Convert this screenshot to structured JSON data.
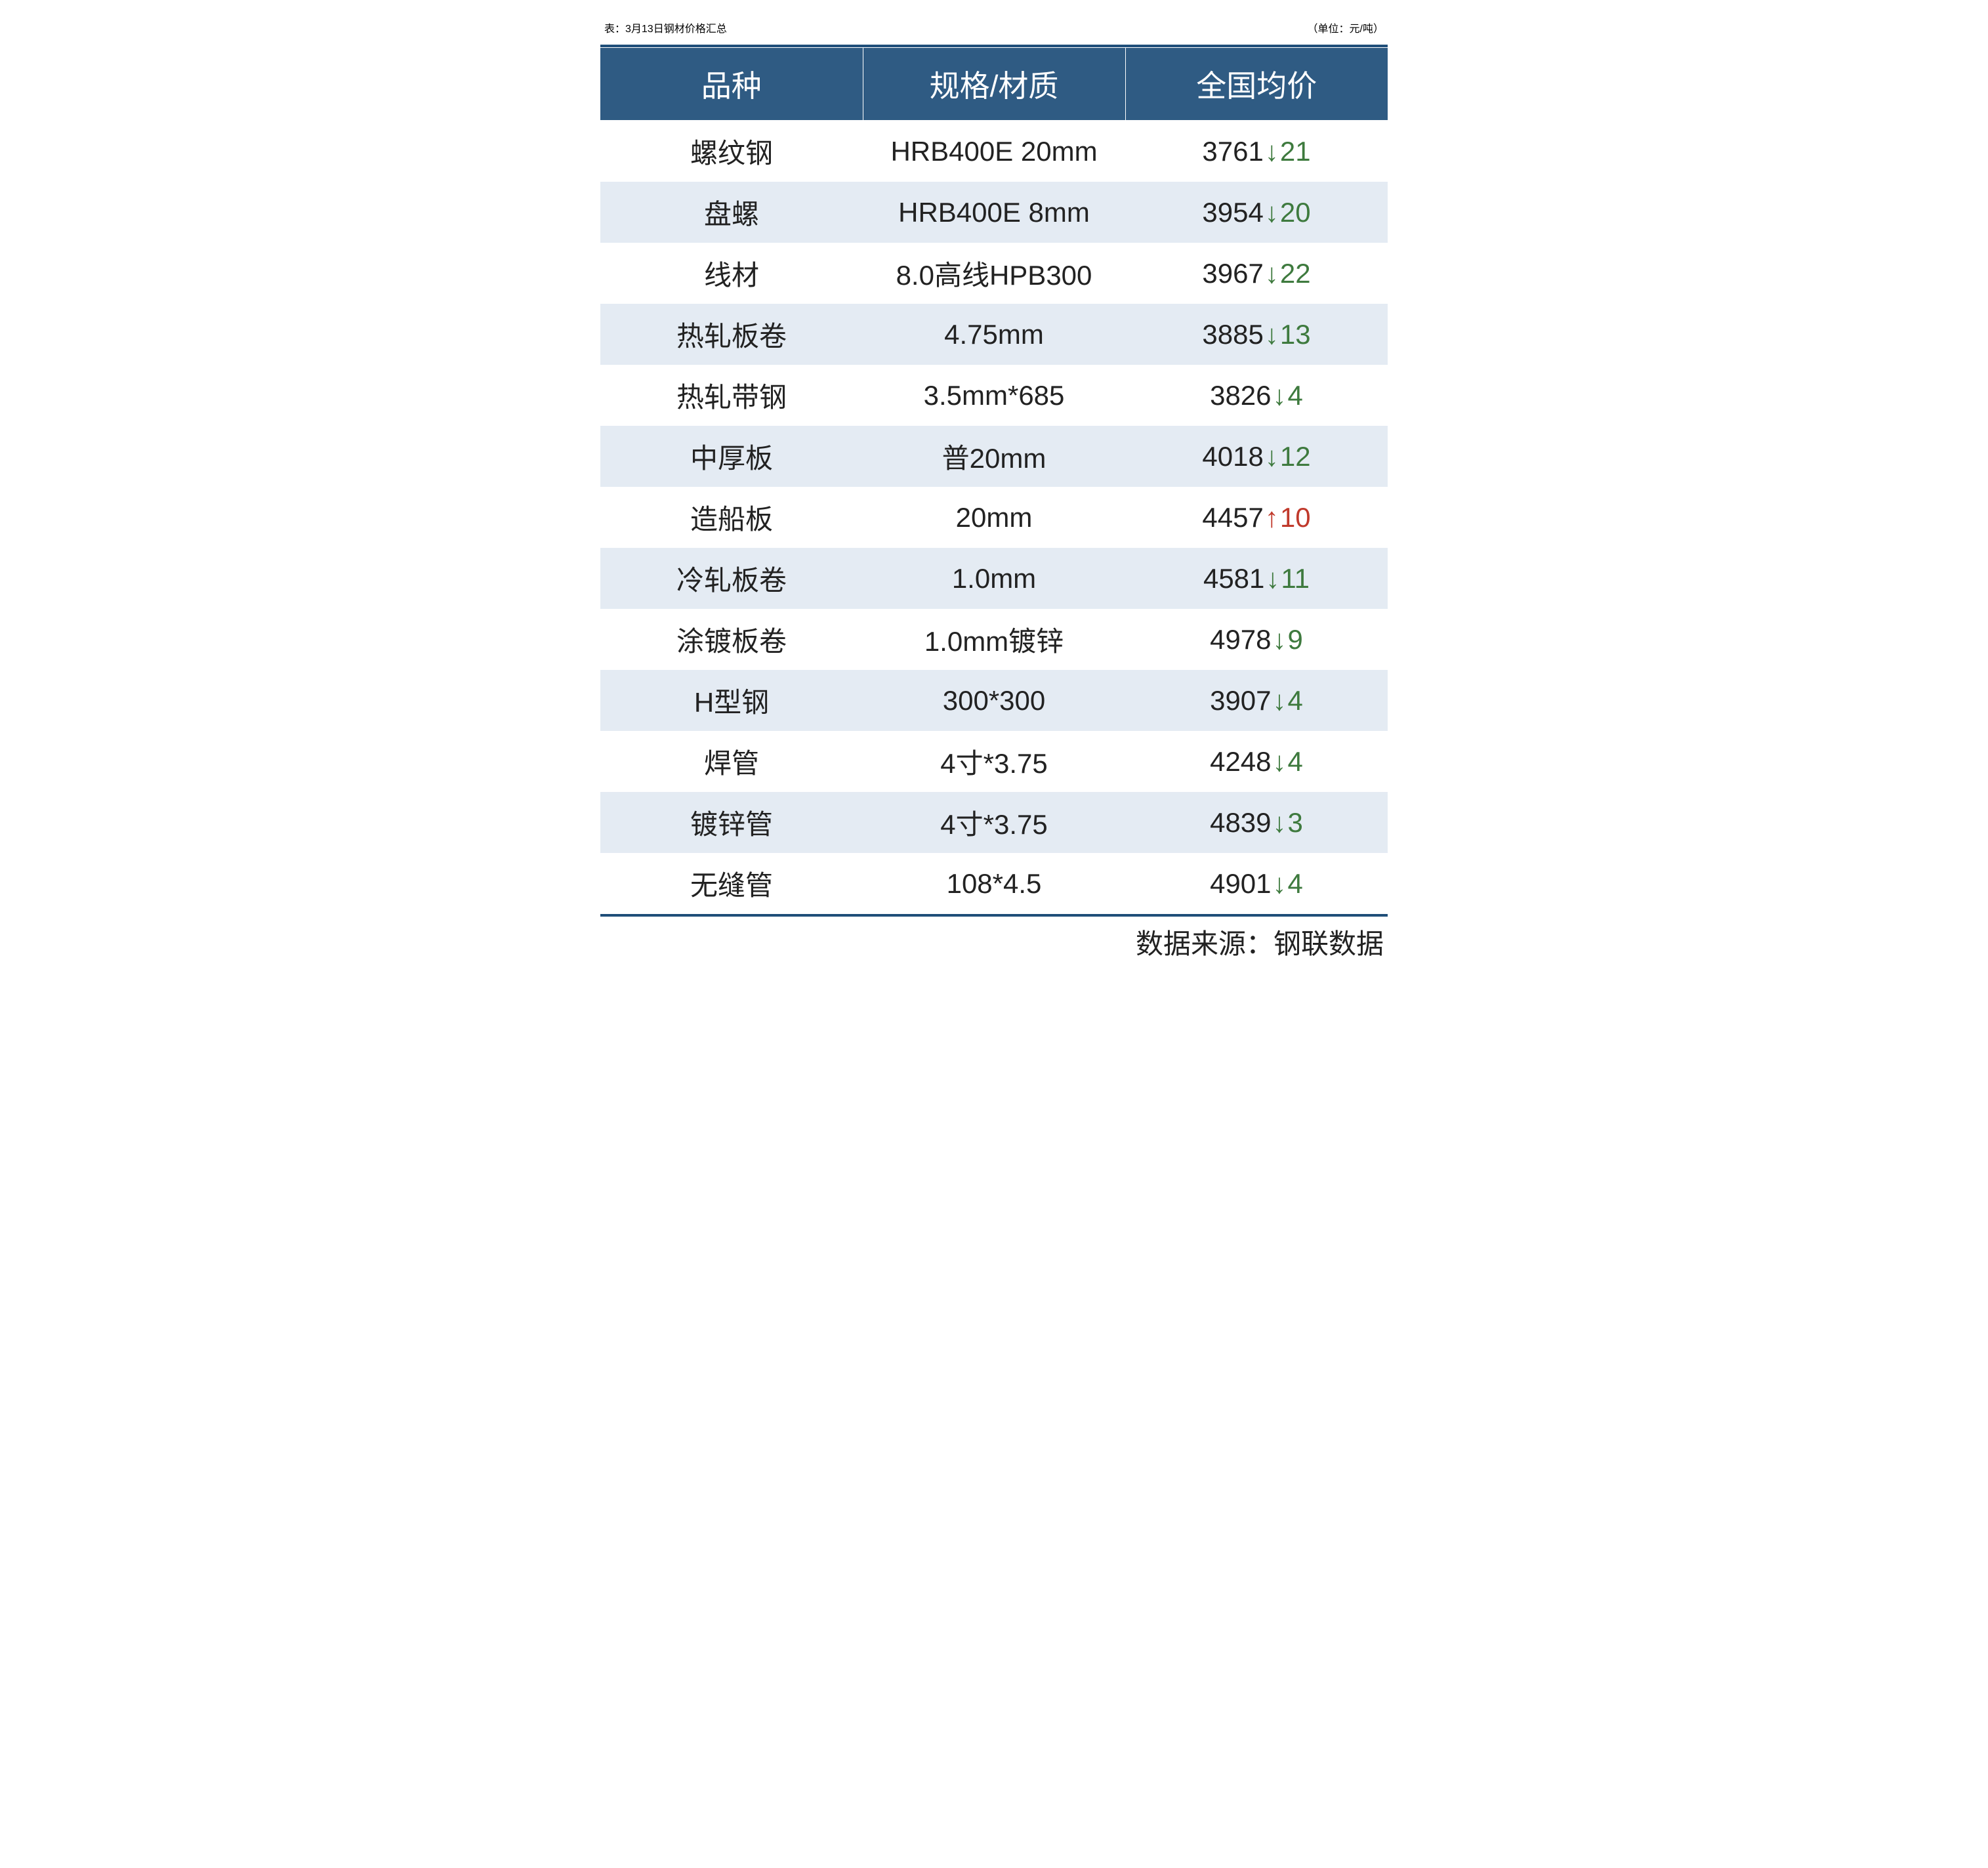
{
  "title_left": "表：3月13日钢材价格汇总",
  "title_right": "（单位：元/吨）",
  "columns": [
    "品种",
    "规格/材质",
    "全国均价"
  ],
  "rows": [
    {
      "product": "螺纹钢",
      "spec": "HRB400E 20mm",
      "price": "3761",
      "dir": "down",
      "delta": "21"
    },
    {
      "product": "盘螺",
      "spec": "HRB400E 8mm",
      "price": "3954",
      "dir": "down",
      "delta": "20"
    },
    {
      "product": "线材",
      "spec": "8.0高线HPB300",
      "price": "3967",
      "dir": "down",
      "delta": "22"
    },
    {
      "product": "热轧板卷",
      "spec": "4.75mm",
      "price": "3885",
      "dir": "down",
      "delta": "13"
    },
    {
      "product": "热轧带钢",
      "spec": "3.5mm*685",
      "price": "3826",
      "dir": "down",
      "delta": "4"
    },
    {
      "product": "中厚板",
      "spec": "普20mm",
      "price": "4018",
      "dir": "down",
      "delta": "12"
    },
    {
      "product": "造船板",
      "spec": "20mm",
      "price": "4457",
      "dir": "up",
      "delta": "10"
    },
    {
      "product": "冷轧板卷",
      "spec": "1.0mm",
      "price": "4581",
      "dir": "down",
      "delta": "11"
    },
    {
      "product": "涂镀板卷",
      "spec": "1.0mm镀锌",
      "price": "4978",
      "dir": "down",
      "delta": "9"
    },
    {
      "product": "H型钢",
      "spec": "300*300",
      "price": "3907",
      "dir": "down",
      "delta": "4"
    },
    {
      "product": "焊管",
      "spec": "4寸*3.75",
      "price": "4248",
      "dir": "down",
      "delta": "4"
    },
    {
      "product": "镀锌管",
      "spec": "4寸*3.75",
      "price": "4839",
      "dir": "down",
      "delta": "3"
    },
    {
      "product": "无缝管",
      "spec": "108*4.5",
      "price": "4901",
      "dir": "down",
      "delta": "4"
    }
  ],
  "footer": "数据来源：钢联数据",
  "style": {
    "type": "table",
    "header_bg": "#2f5b83",
    "header_fg": "#ffffff",
    "row_odd_bg": "#ffffff",
    "row_even_bg": "#e4ebf3",
    "border_color": "#1f4e79",
    "down_color": "#3e7a3e",
    "up_color": "#c0392b",
    "text_color": "#222222",
    "title_fontsize": 42,
    "header_fontsize": 46,
    "cell_fontsize": 42,
    "arrow_down_glyph": "↓",
    "arrow_up_glyph": "↑",
    "col_widths_percent": [
      33,
      34,
      33
    ]
  }
}
